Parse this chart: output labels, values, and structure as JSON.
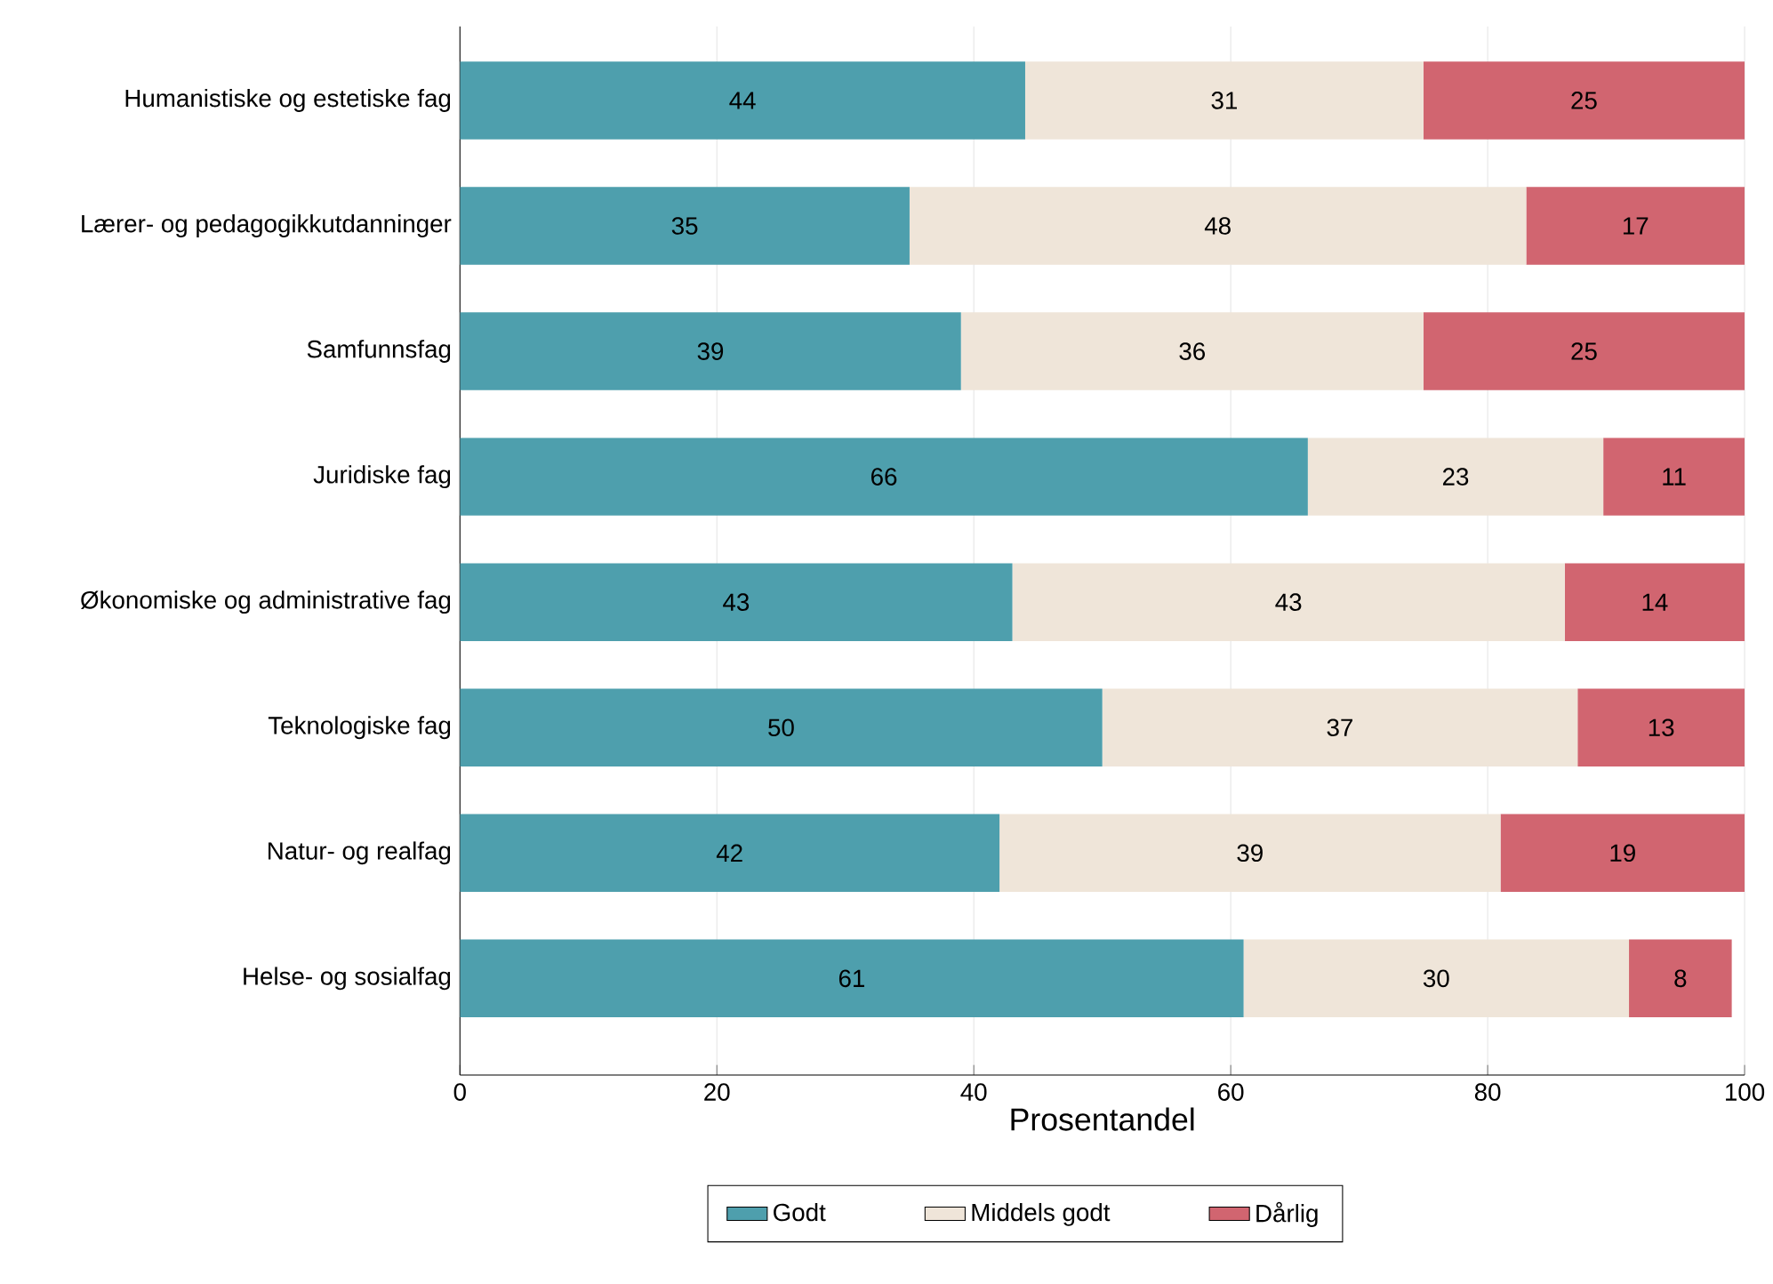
{
  "chart_data": {
    "type": "bar",
    "orientation": "horizontal",
    "stacked": true,
    "xlabel": "Prosentandel",
    "categories": [
      "Humanistiske og estetiske fag",
      "Lærer- og pedagogikkutdanninger",
      "Samfunnsfag",
      "Juridiske fag",
      "Økonomiske og administrative fag",
      "Teknologiske fag",
      "Natur- og realfag",
      "Helse- og sosialfag"
    ],
    "series": [
      {
        "name": "Godt",
        "color": "#4e9fad",
        "values": [
          44,
          35,
          39,
          66,
          43,
          50,
          42,
          61
        ]
      },
      {
        "name": "Middels godt",
        "color": "#efe5d9",
        "values": [
          31,
          48,
          36,
          23,
          43,
          37,
          39,
          30
        ]
      },
      {
        "name": "Dårlig",
        "color": "#d16570",
        "values": [
          25,
          17,
          25,
          11,
          14,
          13,
          19,
          8
        ]
      }
    ],
    "xlim": [
      0,
      100
    ],
    "xticks": [
      0,
      20,
      40,
      60,
      80,
      100
    ],
    "grid": "x",
    "legend": "bottom",
    "data_labels": true
  }
}
